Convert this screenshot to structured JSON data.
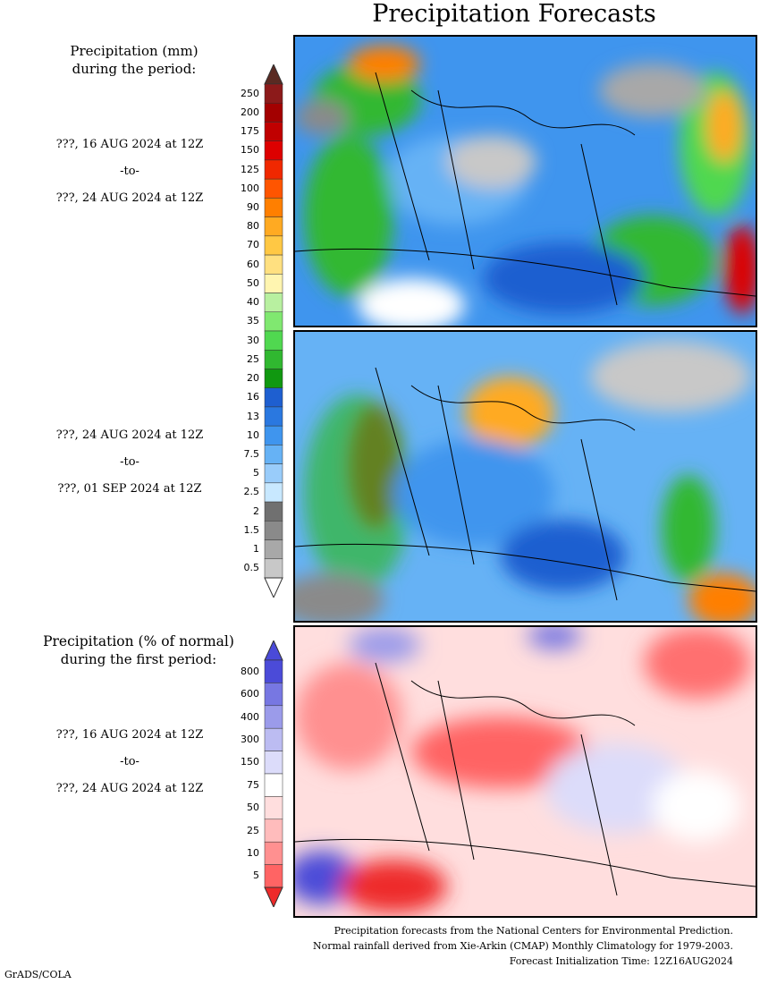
{
  "title": "Precipitation Forecasts",
  "section1": {
    "heading_line1": "Precipitation (mm)",
    "heading_line2": "during the period:",
    "period1": {
      "from": "???, 16 AUG 2024 at 12Z",
      "to_word": "-to-",
      "to": "???, 24 AUG 2024 at 12Z"
    },
    "period2": {
      "from": "???, 24 AUG 2024 at 12Z",
      "to_word": "-to-",
      "to": "???, 01 SEP 2024 at 12Z"
    }
  },
  "section2": {
    "heading_line1": "Precipitation (% of normal)",
    "heading_line2": "during the first period:",
    "period": {
      "from": "???, 16 AUG 2024 at 12Z",
      "to_word": "-to-",
      "to": "???, 24 AUG 2024 at 12Z"
    }
  },
  "precip_scale": {
    "labels": [
      "250",
      "200",
      "175",
      "150",
      "125",
      "100",
      "90",
      "80",
      "70",
      "60",
      "50",
      "40",
      "35",
      "30",
      "25",
      "20",
      "16",
      "13",
      "10",
      "7.5",
      "5",
      "2.5",
      "2",
      "1.5",
      "1",
      "0.5"
    ],
    "colors": [
      "#8c1a1a",
      "#a30000",
      "#c00000",
      "#dd0000",
      "#f02800",
      "#ff5500",
      "#ff7f00",
      "#ffaa22",
      "#ffc844",
      "#ffe080",
      "#fff5b0",
      "#b8f0a0",
      "#80e870",
      "#50d850",
      "#30b830",
      "#109810",
      "#1e5fd0",
      "#2a78e0",
      "#3f95ee",
      "#66b2f5",
      "#99ccfa",
      "#c8e8ff",
      "#707070",
      "#8a8a8a",
      "#a8a8a8",
      "#c8c8c8"
    ],
    "top_color": "#5a2a22",
    "bottom_color": "#ffffff"
  },
  "pct_scale": {
    "labels": [
      "800",
      "600",
      "400",
      "300",
      "150",
      "75",
      "50",
      "25",
      "10",
      "5"
    ],
    "colors": [
      "#4b4bd8",
      "#7777e2",
      "#9b9bea",
      "#bcbcf2",
      "#dcdcfa",
      "#ffffff",
      "#ffdede",
      "#ffbcbc",
      "#ff9090",
      "#ff6464"
    ],
    "top_color": "#4a4ad8",
    "bottom_color": "#ee2a2a"
  },
  "footer": {
    "line1": "Precipitation forecasts from the National Centers for Environmental Prediction.",
    "line2": "Normal rainfall derived from Xie-Arkin (CMAP) Monthly Climatology for 1979-2003.",
    "line3": "Forecast Initialization Time: 12Z16AUG2024"
  },
  "credit": "GrADS/COLA"
}
